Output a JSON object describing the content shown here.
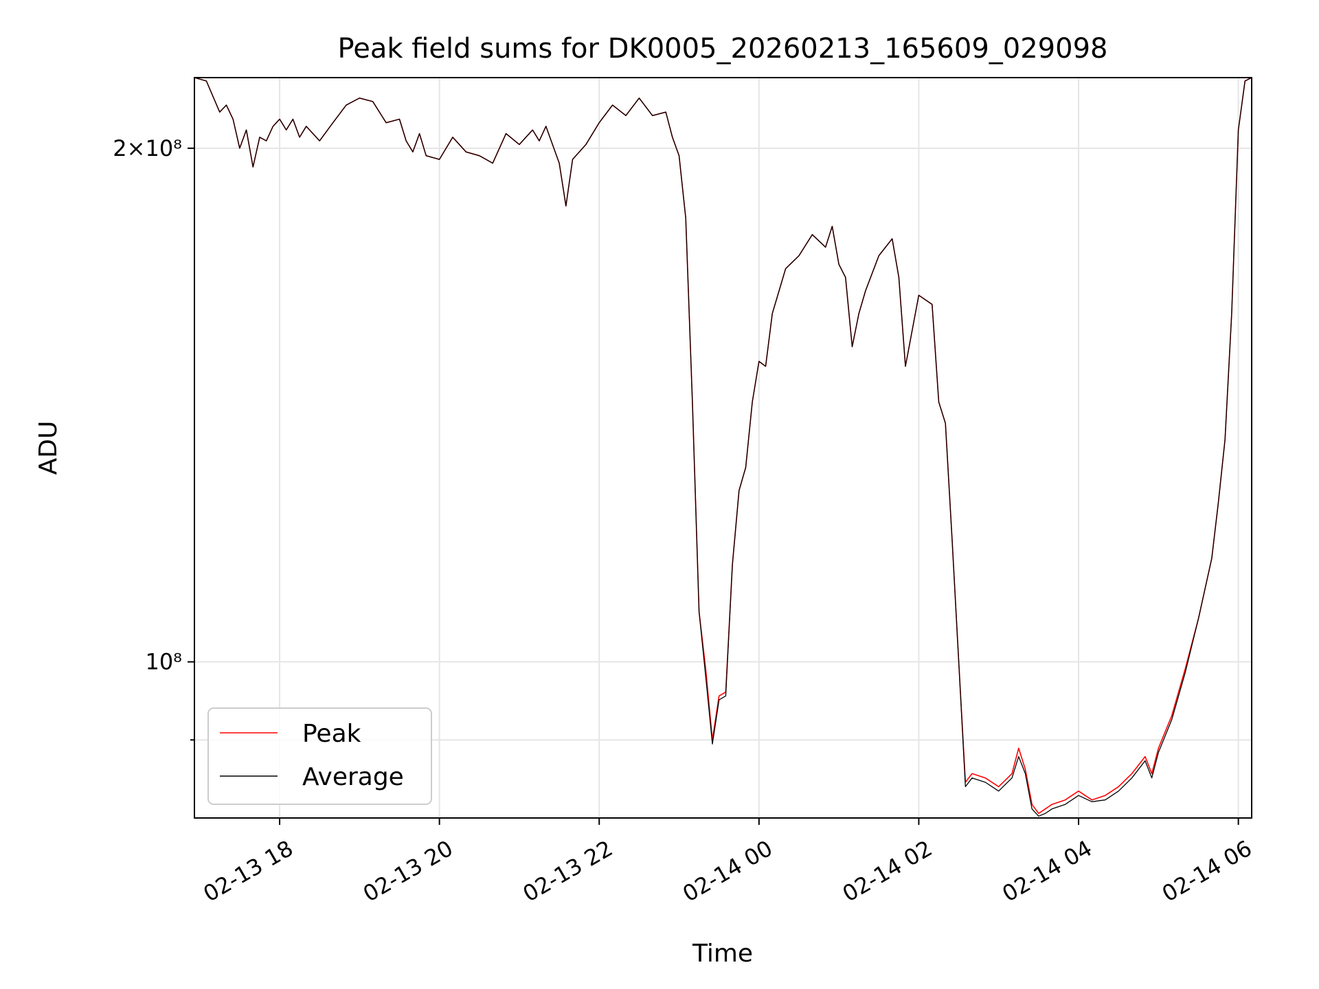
{
  "chart_data": {
    "type": "line",
    "title": "Peak field sums for DK0005_20260213_165609_029098",
    "xlabel": "Time",
    "ylabel": "ADU",
    "yscale": "log",
    "grid": true,
    "legend_position": "lower-left",
    "xlim": [
      "2026-02-13 16:56",
      "2026-02-14 06:10"
    ],
    "ylim": [
      81000000.0,
      220000000.0
    ],
    "x_ticks": [
      {
        "value": "2026-02-13 18:00",
        "label": "02-13 18"
      },
      {
        "value": "2026-02-13 20:00",
        "label": "02-13 20"
      },
      {
        "value": "2026-02-13 22:00",
        "label": "02-13 22"
      },
      {
        "value": "2026-02-14 00:00",
        "label": "02-14 00"
      },
      {
        "value": "2026-02-14 02:00",
        "label": "02-14 02"
      },
      {
        "value": "2026-02-14 04:00",
        "label": "02-14 04"
      },
      {
        "value": "2026-02-14 06:00",
        "label": "02-14 06"
      }
    ],
    "y_ticks": [
      {
        "value": 200000000,
        "label": "2×10⁸",
        "major": true
      },
      {
        "value": 100000000,
        "label": "10⁸",
        "major": true
      },
      {
        "value": 90000000,
        "label": "",
        "major": false
      }
    ],
    "x": [
      "2026-02-13 16:56",
      "2026-02-13 17:05",
      "2026-02-13 17:15",
      "2026-02-13 17:20",
      "2026-02-13 17:25",
      "2026-02-13 17:30",
      "2026-02-13 17:35",
      "2026-02-13 17:40",
      "2026-02-13 17:45",
      "2026-02-13 17:50",
      "2026-02-13 17:55",
      "2026-02-13 18:00",
      "2026-02-13 18:05",
      "2026-02-13 18:10",
      "2026-02-13 18:15",
      "2026-02-13 18:20",
      "2026-02-13 18:30",
      "2026-02-13 18:40",
      "2026-02-13 18:50",
      "2026-02-13 19:00",
      "2026-02-13 19:10",
      "2026-02-13 19:20",
      "2026-02-13 19:30",
      "2026-02-13 19:35",
      "2026-02-13 19:40",
      "2026-02-13 19:45",
      "2026-02-13 19:50",
      "2026-02-13 20:00",
      "2026-02-13 20:10",
      "2026-02-13 20:20",
      "2026-02-13 20:30",
      "2026-02-13 20:40",
      "2026-02-13 20:50",
      "2026-02-13 21:00",
      "2026-02-13 21:10",
      "2026-02-13 21:15",
      "2026-02-13 21:20",
      "2026-02-13 21:30",
      "2026-02-13 21:35",
      "2026-02-13 21:40",
      "2026-02-13 21:50",
      "2026-02-13 22:00",
      "2026-02-13 22:10",
      "2026-02-13 22:20",
      "2026-02-13 22:30",
      "2026-02-13 22:40",
      "2026-02-13 22:50",
      "2026-02-13 22:55",
      "2026-02-13 23:00",
      "2026-02-13 23:05",
      "2026-02-13 23:10",
      "2026-02-13 23:15",
      "2026-02-13 23:20",
      "2026-02-13 23:25",
      "2026-02-13 23:30",
      "2026-02-13 23:35",
      "2026-02-13 23:40",
      "2026-02-13 23:45",
      "2026-02-13 23:50",
      "2026-02-13 23:55",
      "2026-02-14 00:00",
      "2026-02-14 00:05",
      "2026-02-14 00:10",
      "2026-02-14 00:20",
      "2026-02-14 00:30",
      "2026-02-14 00:40",
      "2026-02-14 00:50",
      "2026-02-14 00:55",
      "2026-02-14 01:00",
      "2026-02-14 01:05",
      "2026-02-14 01:10",
      "2026-02-14 01:15",
      "2026-02-14 01:20",
      "2026-02-14 01:30",
      "2026-02-14 01:40",
      "2026-02-14 01:45",
      "2026-02-14 01:50",
      "2026-02-14 02:00",
      "2026-02-14 02:10",
      "2026-02-14 02:15",
      "2026-02-14 02:20",
      "2026-02-14 02:25",
      "2026-02-14 02:30",
      "2026-02-14 02:35",
      "2026-02-14 02:40",
      "2026-02-14 02:50",
      "2026-02-14 03:00",
      "2026-02-14 03:10",
      "2026-02-14 03:15",
      "2026-02-14 03:20",
      "2026-02-14 03:25",
      "2026-02-14 03:30",
      "2026-02-14 03:35",
      "2026-02-14 03:40",
      "2026-02-14 03:50",
      "2026-02-14 04:00",
      "2026-02-14 04:10",
      "2026-02-14 04:20",
      "2026-02-14 04:30",
      "2026-02-14 04:40",
      "2026-02-14 04:50",
      "2026-02-14 04:55",
      "2026-02-14 05:00",
      "2026-02-14 05:10",
      "2026-02-14 05:20",
      "2026-02-14 05:30",
      "2026-02-14 05:40",
      "2026-02-14 05:45",
      "2026-02-14 05:50",
      "2026-02-14 05:55",
      "2026-02-14 06:00",
      "2026-02-14 06:05",
      "2026-02-14 06:10"
    ],
    "series": [
      {
        "name": "Peak",
        "color": "#ff0000",
        "values": [
          220000000.0,
          219000000.0,
          210000000.0,
          212000000.0,
          208000000.0,
          200000000.0,
          205000000.0,
          195000000.0,
          203000000.0,
          202000000.0,
          206000000.0,
          208000000.0,
          205000000.0,
          208000000.0,
          203000000.0,
          206000000.0,
          202000000.0,
          207000000.0,
          212000000.0,
          214000000.0,
          213000000.0,
          207000000.0,
          208000000.0,
          202000000.0,
          199000000.0,
          204000000.0,
          198000000.0,
          197000000.0,
          203000000.0,
          199000000.0,
          198000000.0,
          196000000.0,
          204000000.0,
          201000000.0,
          205000000.0,
          202000000.0,
          206000000.0,
          196000000.0,
          185000000.0,
          197000000.0,
          201000000.0,
          207000000.0,
          212000000.0,
          209000000.0,
          214000000.0,
          209000000.0,
          210000000.0,
          203000000.0,
          198000000.0,
          182000000.0,
          142000000.0,
          107000000.0,
          99000000.0,
          90000000.0,
          95500000.0,
          96000000.0,
          114000000.0,
          126000000.0,
          130000000.0,
          142000000.0,
          150000000.0,
          149000000.0,
          160000000.0,
          170000000.0,
          173000000.0,
          178000000.0,
          175000000.0,
          180000000.0,
          171000000.0,
          168000000.0,
          153000000.0,
          160000000.0,
          165000000.0,
          173000000.0,
          177000000.0,
          168000000.0,
          149000000.0,
          164000000.0,
          162000000.0,
          142000000.0,
          138000000.0,
          118000000.0,
          100000000.0,
          85000000.0,
          86000000.0,
          85500000.0,
          84500000.0,
          86000000.0,
          89000000.0,
          86500000.0,
          82500000.0,
          81500000.0,
          82000000.0,
          82500000.0,
          83000000.0,
          84000000.0,
          83000000.0,
          83500000.0,
          84500000.0,
          86000000.0,
          88000000.0,
          86000000.0,
          89000000.0,
          93000000.0,
          99000000.0,
          106000000.0,
          115000000.0,
          124000000.0,
          135000000.0,
          160000000.0,
          205000000.0,
          219000000.0,
          220000000.0
        ]
      },
      {
        "name": "Average",
        "color": "#000000",
        "values": [
          220000000.0,
          219000000.0,
          210000000.0,
          212000000.0,
          208000000.0,
          200000000.0,
          205000000.0,
          195000000.0,
          203000000.0,
          202000000.0,
          206000000.0,
          208000000.0,
          205000000.0,
          208000000.0,
          203000000.0,
          206000000.0,
          202000000.0,
          207000000.0,
          212000000.0,
          214000000.0,
          213000000.0,
          207000000.0,
          208000000.0,
          202000000.0,
          199000000.0,
          204000000.0,
          198000000.0,
          197000000.0,
          203000000.0,
          199000000.0,
          198000000.0,
          196000000.0,
          204000000.0,
          201000000.0,
          205000000.0,
          202000000.0,
          206000000.0,
          196000000.0,
          185000000.0,
          197000000.0,
          201000000.0,
          207000000.0,
          212000000.0,
          209000000.0,
          214000000.0,
          209000000.0,
          210000000.0,
          203000000.0,
          198000000.0,
          182000000.0,
          142000000.0,
          107000000.0,
          98000000.0,
          89500000.0,
          95000000.0,
          95500000.0,
          114000000.0,
          126000000.0,
          130000000.0,
          142000000.0,
          150000000.0,
          149000000.0,
          160000000.0,
          170000000.0,
          173000000.0,
          178000000.0,
          175000000.0,
          180000000.0,
          171000000.0,
          168000000.0,
          153000000.0,
          160000000.0,
          165000000.0,
          173000000.0,
          177000000.0,
          168000000.0,
          149000000.0,
          164000000.0,
          162000000.0,
          142000000.0,
          138000000.0,
          118000000.0,
          100000000.0,
          84500000.0,
          85500000.0,
          85000000.0,
          84000000.0,
          85500000.0,
          88000000.0,
          86000000.0,
          82000000.0,
          81200000.0,
          81500000.0,
          82000000.0,
          82500000.0,
          83500000.0,
          82800000.0,
          83000000.0,
          84000000.0,
          85500000.0,
          87500000.0,
          85500000.0,
          88500000.0,
          92500000.0,
          98500000.0,
          106000000.0,
          115000000.0,
          124000000.0,
          135000000.0,
          160000000.0,
          205000000.0,
          219000000.0,
          220000000.0
        ]
      }
    ]
  }
}
